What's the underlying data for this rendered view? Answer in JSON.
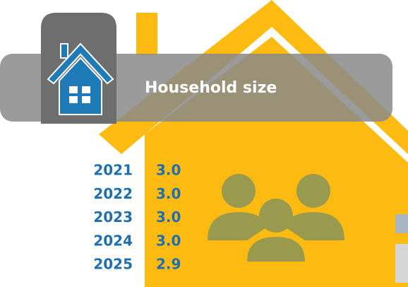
{
  "title": "Household size",
  "rows": [
    {
      "year": "2021",
      "value": "3.0"
    },
    {
      "year": "2022",
      "value": "3.0"
    },
    {
      "year": "2023",
      "value": "3.0"
    },
    {
      "year": "2024",
      "value": "3.0"
    },
    {
      "year": "2025",
      "value": "2.9"
    }
  ]
}
